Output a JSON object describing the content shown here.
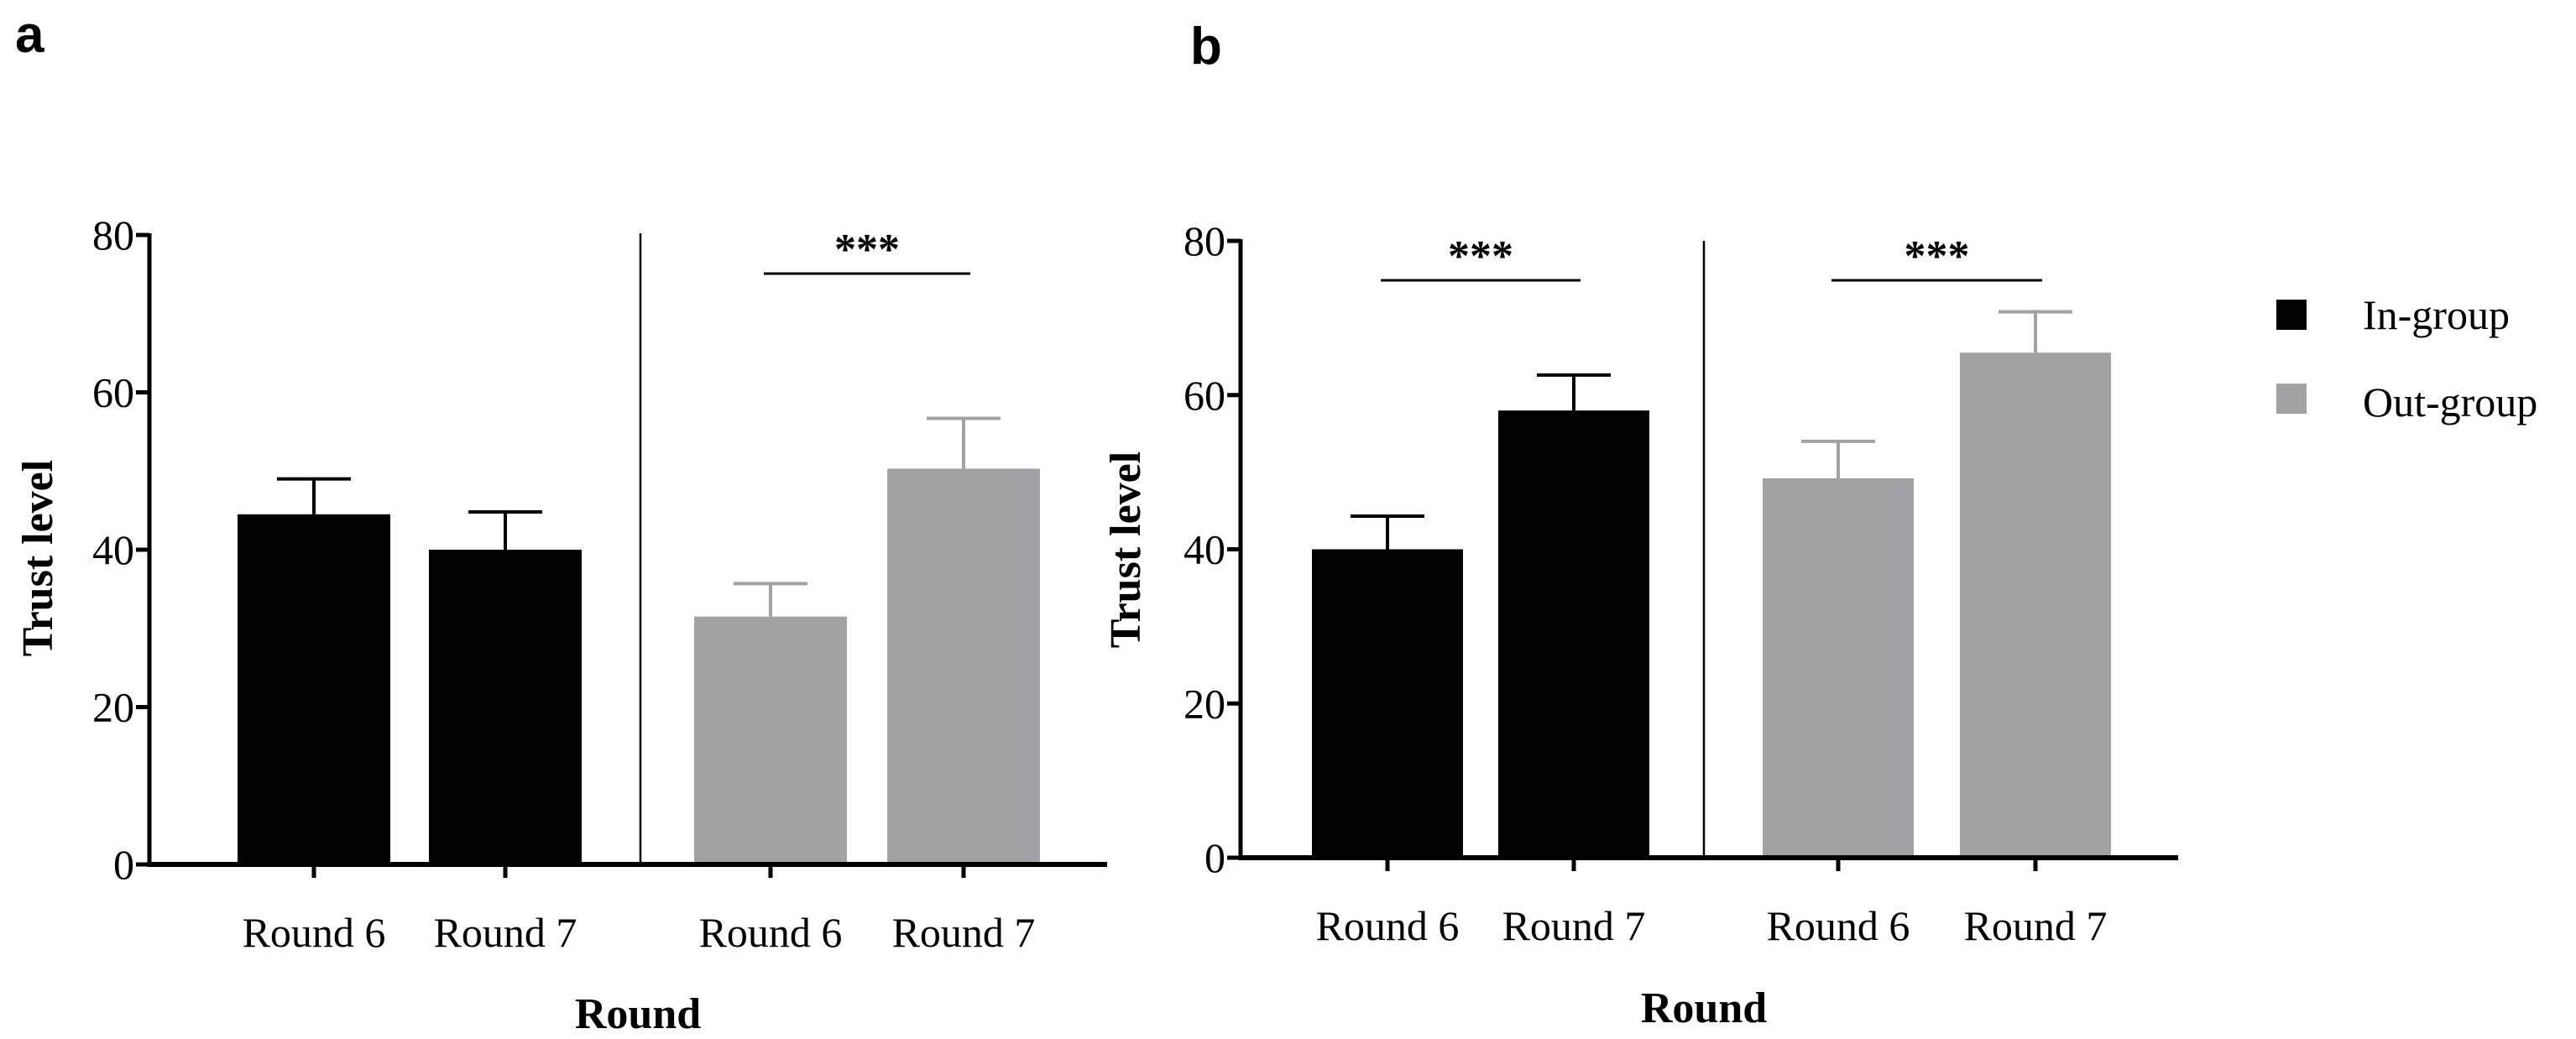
{
  "colors": {
    "in_group": "#000000",
    "out_group": "#a2a1a6",
    "axis": "#000000"
  },
  "legend": {
    "items": [
      {
        "label": "In-group",
        "color": "#000000"
      },
      {
        "label": "Out-group",
        "color": "#a2a1a6"
      }
    ],
    "placement": "right"
  },
  "chart_data": [
    {
      "panel_label": "a",
      "type": "bar",
      "title": "",
      "xlabel": "Round",
      "ylabel": "Trust level",
      "ylim": [
        0,
        80
      ],
      "yticks": [
        0,
        20,
        40,
        60,
        80
      ],
      "categories": [
        "Round 6",
        "Round 7",
        "Round 6",
        "Round 7"
      ],
      "groups": [
        "In-group",
        "Out-group"
      ],
      "bars": [
        {
          "category": "Round 6",
          "group": "In-group",
          "value": 44.5,
          "error": 4.5
        },
        {
          "category": "Round 7",
          "group": "In-group",
          "value": 40.0,
          "error": 4.8
        },
        {
          "category": "Round 6",
          "group": "Out-group",
          "value": 31.5,
          "error": 4.2
        },
        {
          "category": "Round 7",
          "group": "Out-group",
          "value": 50.3,
          "error": 6.4
        }
      ],
      "significance": [
        {
          "from": 2,
          "to": 3,
          "label": "***"
        }
      ]
    },
    {
      "panel_label": "b",
      "type": "bar",
      "title": "",
      "xlabel": "Round",
      "ylabel": "Trust level",
      "ylim": [
        0,
        80
      ],
      "yticks": [
        0,
        20,
        40,
        60,
        80
      ],
      "categories": [
        "Round 6",
        "Round 7",
        "Round 6",
        "Round 7"
      ],
      "groups": [
        "In-group",
        "Out-group"
      ],
      "bars": [
        {
          "category": "Round 6",
          "group": "In-group",
          "value": 40.0,
          "error": 4.3
        },
        {
          "category": "Round 7",
          "group": "In-group",
          "value": 58.0,
          "error": 4.6
        },
        {
          "category": "Round 6",
          "group": "Out-group",
          "value": 49.2,
          "error": 4.8
        },
        {
          "category": "Round 7",
          "group": "Out-group",
          "value": 65.5,
          "error": 5.3
        }
      ],
      "significance": [
        {
          "from": 0,
          "to": 1,
          "label": "***"
        },
        {
          "from": 2,
          "to": 3,
          "label": "***"
        }
      ]
    }
  ]
}
